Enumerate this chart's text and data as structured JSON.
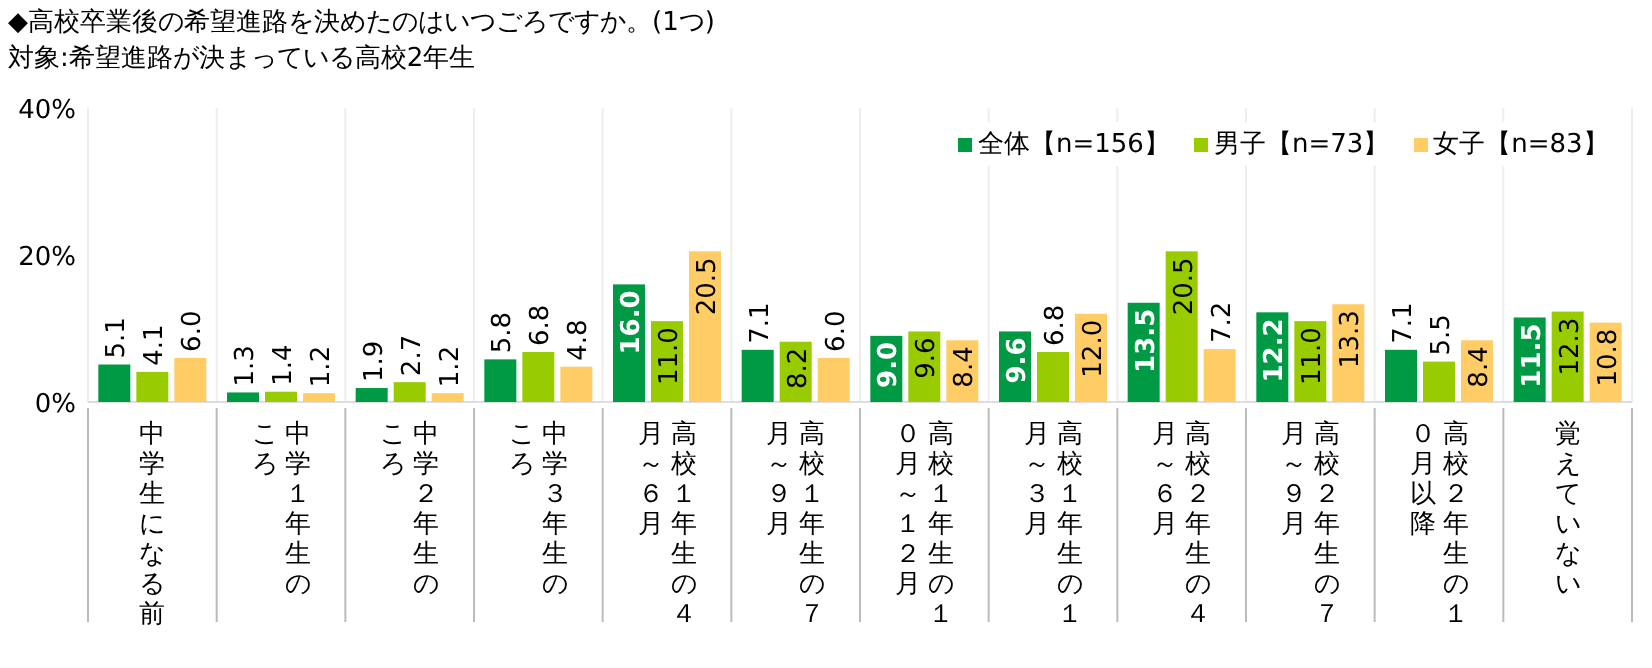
{
  "chart_data": {
    "type": "bar",
    "title": "◆高校卒業後の希望進路を決めたのはいつごろですか。(1つ)",
    "subtitle": "対象:希望進路が決まっている高校2年生",
    "categories": [
      "中学生になる前",
      "中学１年生のころ",
      "中学２年生のころ",
      "中学３年生のころ",
      "高校１年生の４月～６月",
      "高校１年生の７月～９月",
      "高校１年生の１０月～１２月",
      "高校１年生の１月～３月",
      "高校２年生の４月～６月",
      "高校２年生の７月～９月",
      "高校２年生の１０月以降",
      "覚えていない"
    ],
    "series": [
      {
        "name": "全体【n=156】",
        "color": "#009944",
        "values": [
          5.1,
          1.3,
          1.9,
          5.8,
          16.0,
          7.1,
          9.0,
          9.6,
          13.5,
          12.2,
          7.1,
          11.5
        ],
        "value_labels": [
          "5.1",
          "1.3",
          "1.9",
          "5.8",
          "16.0",
          "7.1",
          "9.0",
          "9.6",
          "13.5",
          "12.2",
          "7.1",
          "11.5"
        ]
      },
      {
        "name": "男子【n=73】",
        "color": "#99cc00",
        "values": [
          4.1,
          1.4,
          2.7,
          6.8,
          11.0,
          8.2,
          9.6,
          6.8,
          20.5,
          11.0,
          5.5,
          12.3
        ],
        "value_labels": [
          "4.1",
          "1.4",
          "2.7",
          "6.8",
          "11.0",
          "8.2",
          "9.6",
          "6.8",
          "20.5",
          "11.0",
          "5.5",
          "12.3"
        ]
      },
      {
        "name": "女子【n=83】",
        "color": "#ffcc66",
        "values": [
          6.0,
          1.2,
          1.2,
          4.8,
          20.5,
          6.0,
          8.4,
          12.0,
          7.2,
          13.3,
          8.4,
          10.8
        ],
        "value_labels": [
          "6.0",
          "1.2",
          "1.2",
          "4.8",
          "20.5",
          "6.0",
          "8.4",
          "12.0",
          "7.2",
          "13.3",
          "8.4",
          "10.8"
        ]
      }
    ],
    "ylim": [
      0,
      40
    ],
    "yticks": [
      {
        "value": 0,
        "label": "0%"
      },
      {
        "value": 20,
        "label": "20%"
      },
      {
        "value": 40,
        "label": "40%"
      }
    ],
    "grid": "x",
    "legend": "top right"
  }
}
